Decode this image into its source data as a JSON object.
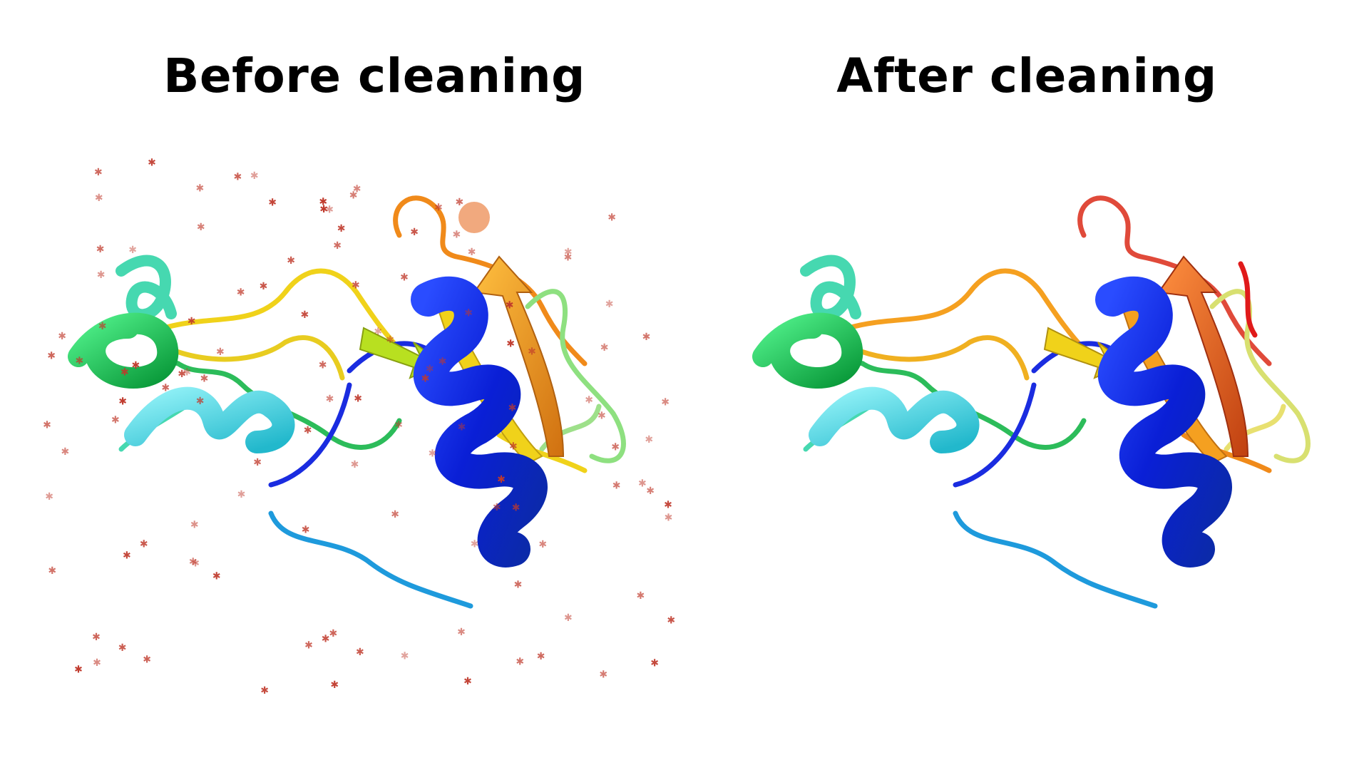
{
  "titles": {
    "left": "Before cleaning",
    "right": "After cleaning"
  },
  "colors": {
    "water": "#c0392b",
    "ion": "#f0a070",
    "blue": "#0a1fd6",
    "blue2": "#1255e0",
    "cyan": "#3fd9e8",
    "teal": "#46d8b0",
    "green": "#1ec85a",
    "lime": "#a8e070",
    "yellow": "#f0d21a",
    "orange": "#f5a020",
    "darkorange": "#f06a1a",
    "red": "#e01a1a"
  }
}
